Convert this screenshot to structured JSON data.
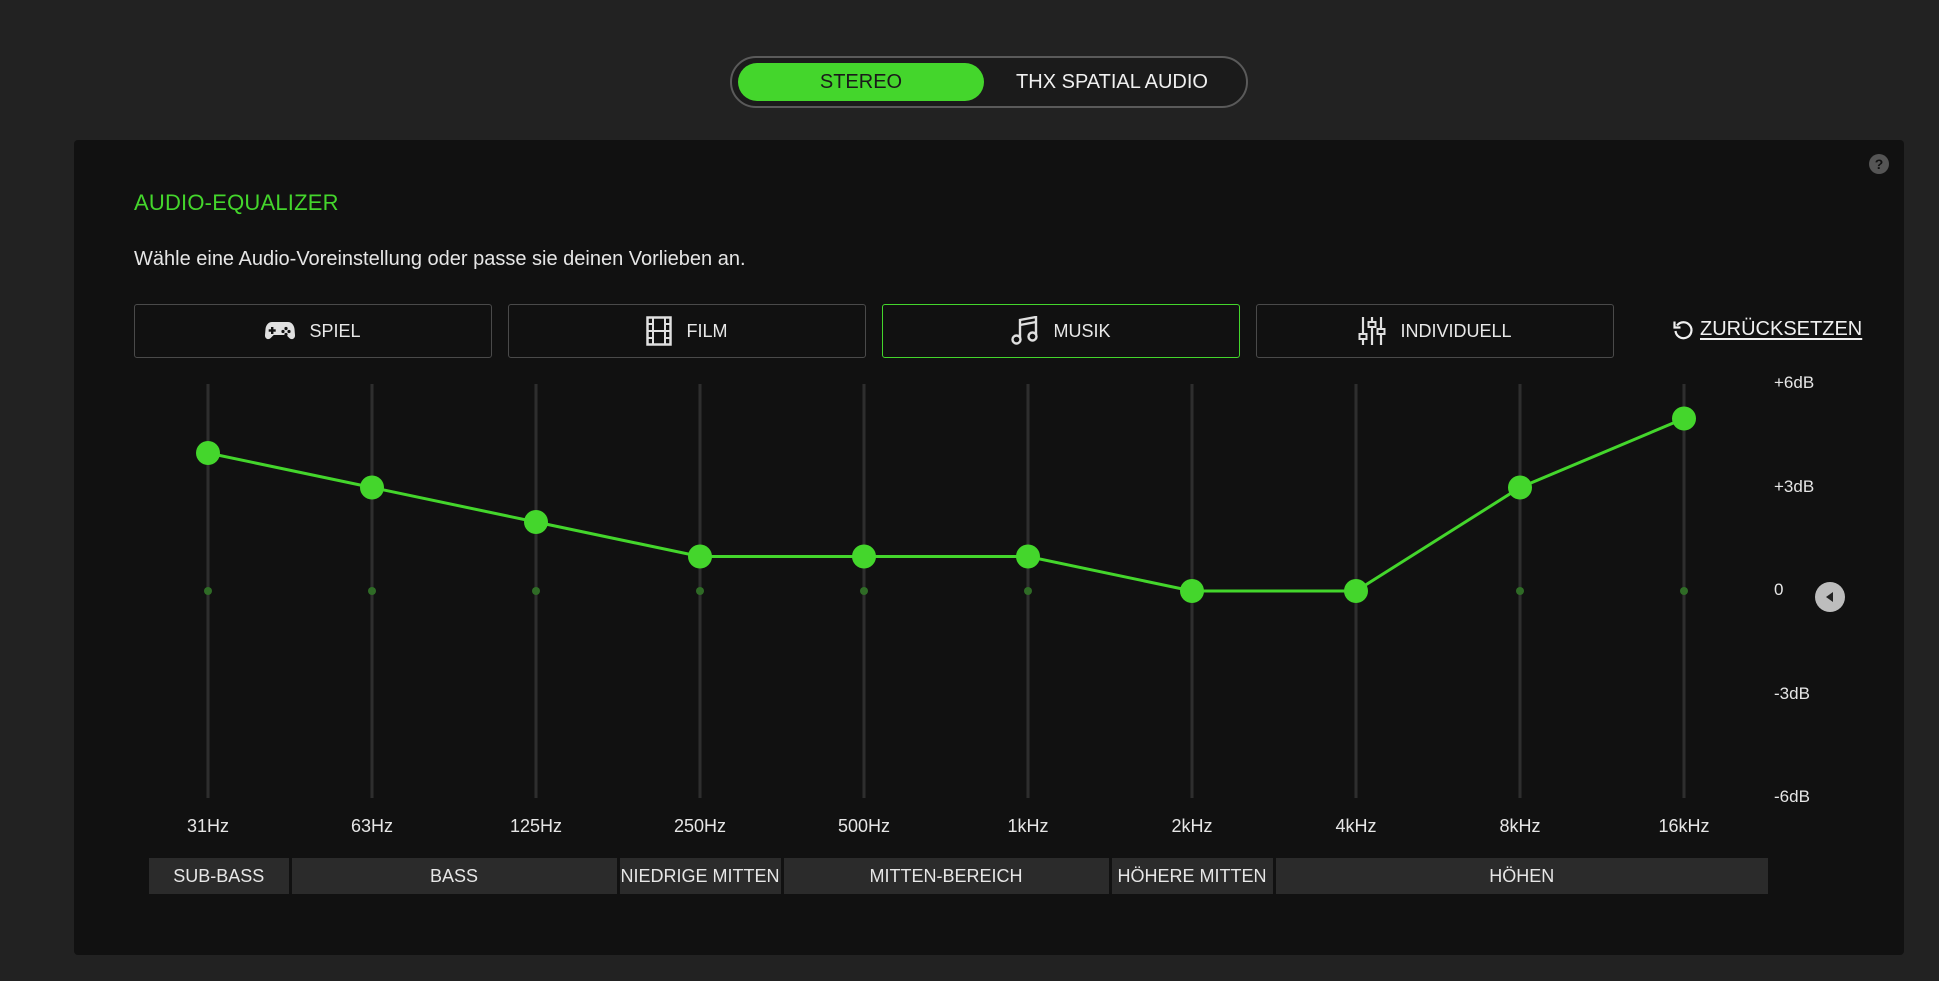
{
  "mode_toggle": {
    "options": [
      "STEREO",
      "THX SPATIAL AUDIO"
    ],
    "selected": "STEREO"
  },
  "panel": {
    "title": "AUDIO-EQUALIZER",
    "subtitle": "Wähle eine Audio-Voreinstellung oder passe sie deinen Vorlieben an.",
    "help": "?",
    "reset_label": "ZURÜCKSETZEN",
    "presets": [
      {
        "label": "SPIEL",
        "icon": "gamepad-icon"
      },
      {
        "label": "FILM",
        "icon": "film-icon"
      },
      {
        "label": "MUSIK",
        "icon": "music-note-icon"
      },
      {
        "label": "INDIVIDUELL",
        "icon": "sliders-icon"
      }
    ],
    "selected_preset": "MUSIK"
  },
  "chart_data": {
    "type": "line",
    "categories": [
      "31Hz",
      "63Hz",
      "125Hz",
      "250Hz",
      "500Hz",
      "1kHz",
      "2kHz",
      "4kHz",
      "8kHz",
      "16kHz"
    ],
    "values": [
      4,
      3,
      2,
      1,
      1,
      1,
      0,
      0,
      3,
      5
    ],
    "y_ticks": [
      "+6dB",
      "+3dB",
      "0",
      "-3dB",
      "-6dB"
    ],
    "ylim": [
      -6,
      6
    ],
    "ranges": [
      {
        "label": "SUB-BASS",
        "bands": [
          0
        ]
      },
      {
        "label": "BASS",
        "bands": [
          1,
          2
        ]
      },
      {
        "label": "NIEDRIGE MITTEN",
        "bands": [
          3
        ]
      },
      {
        "label": "MITTEN-BEREICH",
        "bands": [
          4,
          5
        ]
      },
      {
        "label": "HÖHERE MITTEN",
        "bands": [
          6
        ]
      },
      {
        "label": "HÖHEN",
        "bands": [
          7,
          8,
          9
        ]
      }
    ],
    "line_color": "#44d62c"
  },
  "colors": {
    "accent": "#44d62c",
    "background": "#222222",
    "panel": "#111111"
  }
}
